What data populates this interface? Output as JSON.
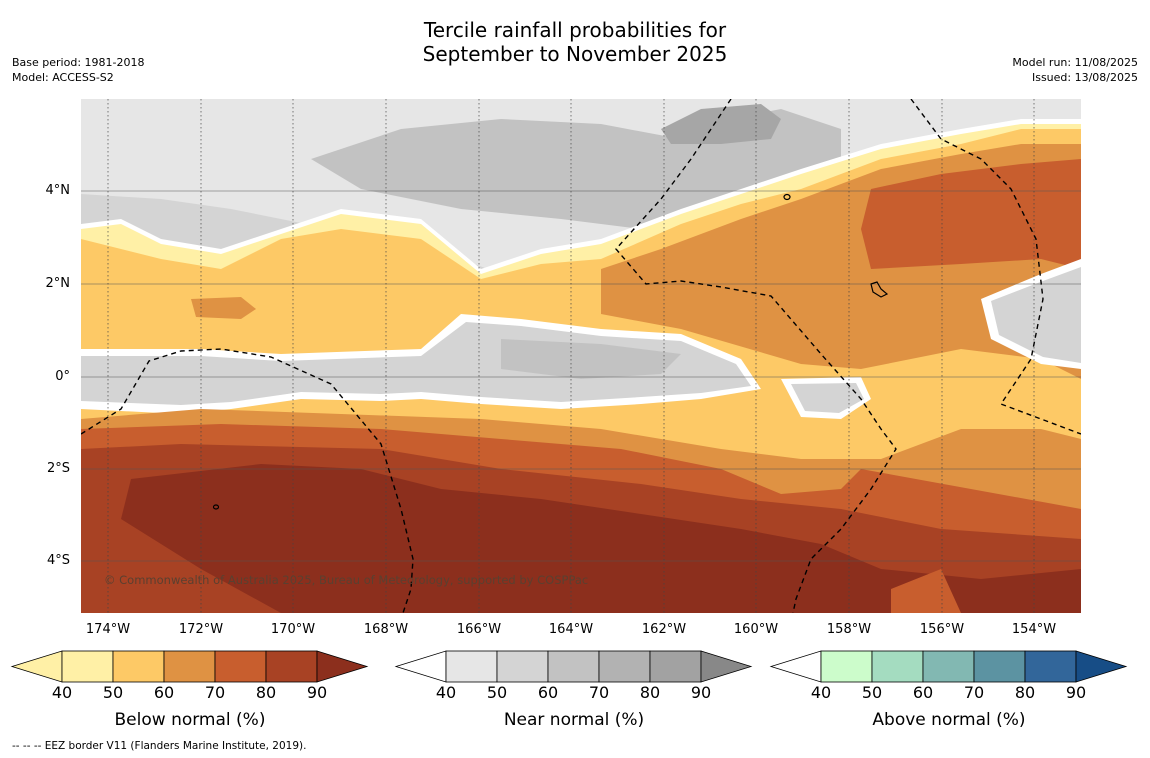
{
  "title_line1": "Tercile rainfall probabilities for",
  "title_line2": "September to November 2025",
  "base_period": "Base period: 1981-2018",
  "model": "Model: ACCESS-S2",
  "model_run": "Model run: 11/08/2025",
  "issued": "Issued: 13/08/2025",
  "lat_labels": [
    "4°N",
    "2°N",
    "0°",
    "2°S",
    "4°S"
  ],
  "lon_labels": [
    "174°W",
    "172°W",
    "170°W",
    "168°W",
    "166°W",
    "164°W",
    "162°W",
    "160°W",
    "158°W",
    "156°W",
    "154°W"
  ],
  "copyright": "© Commonwealth of Australia 2025, Bureau of Meteorology, supported by COSPPac",
  "colorbars": [
    {
      "label": "Below normal (%)",
      "colors": [
        "#fff0a6",
        "#fdc966",
        "#df9243",
        "#c85e2e",
        "#a84224",
        "#8c2f1d"
      ]
    },
    {
      "label": "Near normal (%)",
      "colors": [
        "#e6e6e6",
        "#d4d4d4",
        "#c2c2c2",
        "#b2b2b2",
        "#a2a2a2",
        "#888888"
      ]
    },
    {
      "label": "Above normal (%)",
      "colors": [
        "#ccfccb",
        "#a4dcc0",
        "#82b8b2",
        "#5c93a2",
        "#32669a",
        "#174d86"
      ]
    }
  ],
  "colorbar_ticks": [
    "40",
    "50",
    "60",
    "70",
    "80",
    "90"
  ],
  "footnote": "--  --  -- EEZ border V11 (Flanders Marine Institute, 2019)."
}
